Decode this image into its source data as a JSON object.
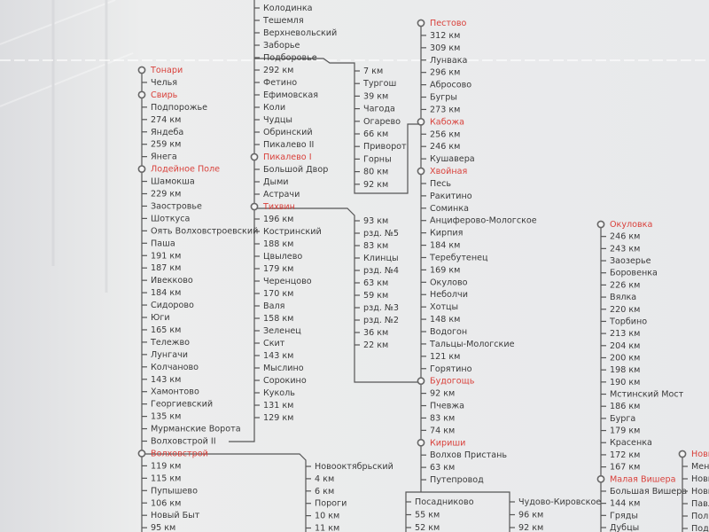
{
  "columns": [
    {
      "stations": [
        {
          "name": "Тонари",
          "hub": true
        },
        {
          "name": "Челья"
        },
        {
          "name": "Свирь",
          "hub": true
        },
        {
          "name": "Подпорожье"
        },
        {
          "name": "274 км"
        },
        {
          "name": "Яндеба"
        },
        {
          "name": "259 км"
        },
        {
          "name": "Янега"
        },
        {
          "name": "Лодейное Поле",
          "hub": true
        },
        {
          "name": "Шамокша"
        },
        {
          "name": "229 км"
        },
        {
          "name": "Заостровье"
        },
        {
          "name": "Шоткуса"
        },
        {
          "name": "Оять Волховстроевский"
        },
        {
          "name": "Паша"
        },
        {
          "name": "191 км"
        },
        {
          "name": "187 км"
        },
        {
          "name": "Ивекково"
        },
        {
          "name": "184 км"
        },
        {
          "name": "Сидорово"
        },
        {
          "name": "Юги"
        },
        {
          "name": "165 км"
        },
        {
          "name": "Тележво"
        },
        {
          "name": "Лунгачи"
        },
        {
          "name": "Колчаново"
        },
        {
          "name": "143 км"
        },
        {
          "name": "Хамонтово"
        },
        {
          "name": "Георгиевский"
        },
        {
          "name": "135 км"
        },
        {
          "name": "Мурманские Ворота"
        },
        {
          "name": "Волховстрой II"
        },
        {
          "name": "Волховстрой",
          "hub": true
        },
        {
          "name": "119 км"
        },
        {
          "name": "115 км"
        },
        {
          "name": "Пупышево"
        },
        {
          "name": "106 км"
        },
        {
          "name": "Новый Быт"
        },
        {
          "name": "95 км"
        }
      ]
    },
    {
      "stations": [
        {
          "name": "Колодинка"
        },
        {
          "name": "Тешемля"
        },
        {
          "name": "Верхневольский"
        },
        {
          "name": "Заборье"
        },
        {
          "name": "Подборовье"
        },
        {
          "name": "292 км"
        },
        {
          "name": "Фетино"
        },
        {
          "name": "Ефимовская"
        },
        {
          "name": "Коли"
        },
        {
          "name": "Чудцы"
        },
        {
          "name": "Обринский"
        },
        {
          "name": "Пикалево II"
        },
        {
          "name": "Пикалево I",
          "hub": true
        },
        {
          "name": "Большой Двор"
        },
        {
          "name": "Дыми"
        },
        {
          "name": "Астрачи"
        },
        {
          "name": "Тихвин",
          "hub": true
        },
        {
          "name": "196 км"
        },
        {
          "name": "Костринский"
        },
        {
          "name": "188 км"
        },
        {
          "name": "Цвылево"
        },
        {
          "name": "179 км"
        },
        {
          "name": "Черенцово"
        },
        {
          "name": "170 км"
        },
        {
          "name": "Валя"
        },
        {
          "name": "158 км"
        },
        {
          "name": "Зеленец"
        },
        {
          "name": "Скит"
        },
        {
          "name": "143 км"
        },
        {
          "name": "Мыслино"
        },
        {
          "name": "Сорокино"
        },
        {
          "name": "Куколь"
        },
        {
          "name": "131 км"
        },
        {
          "name": "129 км"
        }
      ]
    },
    {
      "stations": [
        {
          "name": "7 км"
        },
        {
          "name": "Тургош"
        },
        {
          "name": "39 км"
        },
        {
          "name": "Чагода"
        },
        {
          "name": "Огарево"
        },
        {
          "name": "66 км"
        },
        {
          "name": "Приворот"
        },
        {
          "name": "Горны"
        },
        {
          "name": "80 км"
        },
        {
          "name": "92 км"
        }
      ]
    },
    {
      "stations": [
        {
          "name": "93 км"
        },
        {
          "name": "рзд. №5"
        },
        {
          "name": "83 км"
        },
        {
          "name": "Клинцы"
        },
        {
          "name": "рзд. №4"
        },
        {
          "name": "63 км"
        },
        {
          "name": "59 км"
        },
        {
          "name": "рзд. №3"
        },
        {
          "name": "рзд. №2"
        },
        {
          "name": "36 км"
        },
        {
          "name": "22 км"
        }
      ]
    },
    {
      "stations": [
        {
          "name": "Пестово",
          "hub": true
        },
        {
          "name": "312 км"
        },
        {
          "name": "309 км"
        },
        {
          "name": "Лунвака"
        },
        {
          "name": "296 км"
        },
        {
          "name": "Абросово"
        },
        {
          "name": "Бугры"
        },
        {
          "name": "273 км"
        },
        {
          "name": "Кабожа",
          "hub": true
        },
        {
          "name": "256 км"
        },
        {
          "name": "246 км"
        },
        {
          "name": "Кушавера"
        },
        {
          "name": "Хвойная",
          "hub": true
        },
        {
          "name": "Песь"
        },
        {
          "name": "Ракитино"
        },
        {
          "name": "Соминка"
        },
        {
          "name": "Анциферово-Мологское"
        },
        {
          "name": "Кирпия"
        },
        {
          "name": "184 км"
        },
        {
          "name": "Теребутенец"
        },
        {
          "name": "169 км"
        },
        {
          "name": "Окулово"
        },
        {
          "name": "Неболчи"
        },
        {
          "name": "Хотцы"
        },
        {
          "name": "148 км"
        },
        {
          "name": "Водогон"
        },
        {
          "name": "Тальцы-Мологские"
        },
        {
          "name": "121 км"
        },
        {
          "name": "Горятино"
        },
        {
          "name": "Будогощь",
          "hub": true
        },
        {
          "name": "92 км"
        },
        {
          "name": "Пчевжа"
        },
        {
          "name": "83 км"
        },
        {
          "name": "74 км"
        },
        {
          "name": "Кириши",
          "hub": true
        },
        {
          "name": "Волхов Пристань"
        },
        {
          "name": "63 км"
        },
        {
          "name": "Путепровод"
        }
      ]
    },
    {
      "stations": [
        {
          "name": "Новооктябрьский"
        },
        {
          "name": "4 км"
        },
        {
          "name": "6 км"
        },
        {
          "name": "Пороги"
        },
        {
          "name": "10 км"
        },
        {
          "name": "11 км"
        }
      ]
    },
    {
      "stations": [
        {
          "name": "Посадниково"
        },
        {
          "name": "55 км"
        },
        {
          "name": "52 км"
        }
      ]
    },
    {
      "stations": [
        {
          "name": "Чудово-Кировское"
        },
        {
          "name": "96 км"
        },
        {
          "name": "92 км"
        }
      ]
    },
    {
      "stations": [
        {
          "name": "Окуловка",
          "hub": true
        },
        {
          "name": "246 км"
        },
        {
          "name": "243 км"
        },
        {
          "name": "Заозерье"
        },
        {
          "name": "Боровенка"
        },
        {
          "name": "226 км"
        },
        {
          "name": "Вялка"
        },
        {
          "name": "220 км"
        },
        {
          "name": "Торбино"
        },
        {
          "name": "213 км"
        },
        {
          "name": "204 км"
        },
        {
          "name": "200 км"
        },
        {
          "name": "198 км"
        },
        {
          "name": "190 км"
        },
        {
          "name": "Мстинский Мост"
        },
        {
          "name": "186 км"
        },
        {
          "name": "Бурга"
        },
        {
          "name": "179 км"
        },
        {
          "name": "Красенка"
        },
        {
          "name": "172 км"
        },
        {
          "name": "167 км"
        },
        {
          "name": "Малая Вишера",
          "hub": true
        },
        {
          "name": "Большая Вишера"
        },
        {
          "name": "144 км"
        },
        {
          "name": "Гряды"
        },
        {
          "name": "Дубцы"
        }
      ]
    },
    {
      "stations": [
        {
          "name": "Новг",
          "hub": true
        },
        {
          "name": "Менд"
        },
        {
          "name": "Новг"
        },
        {
          "name": "Новг"
        },
        {
          "name": "Павл"
        },
        {
          "name": "Пол"
        },
        {
          "name": "Под"
        }
      ]
    }
  ]
}
